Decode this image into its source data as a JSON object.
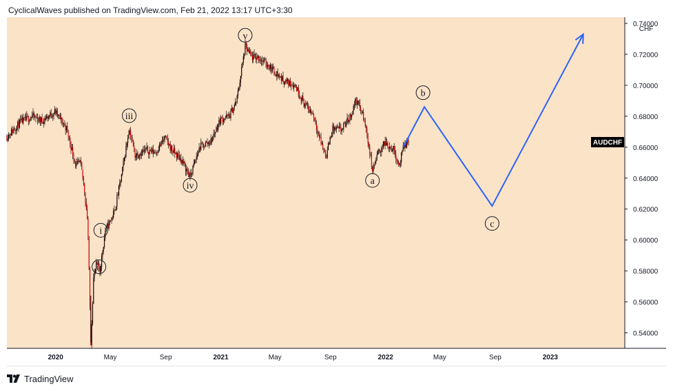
{
  "header": {
    "publisher_line": "CyclicalWaves published on TradingView.com, Feb 21, 2022 13:17 UTC+3:30"
  },
  "footer": {
    "brand": "TradingView",
    "logo_icon": "tradingview-logo-icon"
  },
  "colors": {
    "background": "#fbe3c8",
    "candle": "#d60000",
    "wick": "#1a0000",
    "projection": "#2962ff",
    "axis_text": "#131722",
    "label_bg": "#000000"
  },
  "chart_data": {
    "type": "line",
    "symbol": "AUDCHF",
    "currency_label": "CHF",
    "last_price_label": "AUDCHF",
    "y_axis": {
      "min": 0.53,
      "max": 0.744,
      "ticks": [
        "0.54000",
        "0.56000",
        "0.58000",
        "0.60000",
        "0.62000",
        "0.64000",
        "0.66000",
        "0.68000",
        "0.70000",
        "0.72000",
        "0.74000"
      ]
    },
    "x_axis": {
      "start": "2019-09-15",
      "end": "2023-06-15",
      "ticks": [
        {
          "label": "2020",
          "date": "2020-01-01",
          "bold": true
        },
        {
          "label": "May",
          "date": "2020-05-01"
        },
        {
          "label": "Sep",
          "date": "2020-09-01"
        },
        {
          "label": "2021",
          "date": "2021-01-01",
          "bold": true
        },
        {
          "label": "May",
          "date": "2021-05-01"
        },
        {
          "label": "Sep",
          "date": "2021-09-01"
        },
        {
          "label": "2022",
          "date": "2022-01-01",
          "bold": true
        },
        {
          "label": "May",
          "date": "2022-05-01"
        },
        {
          "label": "Sep",
          "date": "2022-09-01"
        },
        {
          "label": "2023",
          "date": "2023-01-01",
          "bold": true
        }
      ]
    },
    "price_path": [
      [
        "2019-09-15",
        0.667
      ],
      [
        "2019-10-15",
        0.676
      ],
      [
        "2019-11-10",
        0.68
      ],
      [
        "2019-12-01",
        0.677
      ],
      [
        "2019-12-31",
        0.683
      ],
      [
        "2020-01-25",
        0.672
      ],
      [
        "2020-02-15",
        0.648
      ],
      [
        "2020-02-25",
        0.65
      ],
      [
        "2020-03-05",
        0.632
      ],
      [
        "2020-03-12",
        0.612
      ],
      [
        "2020-03-19",
        0.534
      ],
      [
        "2020-03-25",
        0.575
      ],
      [
        "2020-04-01",
        0.585
      ],
      [
        "2020-04-08",
        0.58
      ],
      [
        "2020-04-20",
        0.606
      ],
      [
        "2020-05-10",
        0.618
      ],
      [
        "2020-05-25",
        0.64
      ],
      [
        "2020-06-08",
        0.665
      ],
      [
        "2020-06-12",
        0.672
      ],
      [
        "2020-06-25",
        0.655
      ],
      [
        "2020-07-20",
        0.658
      ],
      [
        "2020-08-10",
        0.657
      ],
      [
        "2020-08-30",
        0.666
      ],
      [
        "2020-09-15",
        0.658
      ],
      [
        "2020-10-05",
        0.652
      ],
      [
        "2020-10-25",
        0.641
      ],
      [
        "2020-11-15",
        0.66
      ],
      [
        "2020-12-10",
        0.664
      ],
      [
        "2020-12-31",
        0.678
      ],
      [
        "2021-01-20",
        0.68
      ],
      [
        "2021-02-05",
        0.69
      ],
      [
        "2021-02-24",
        0.725
      ],
      [
        "2021-03-10",
        0.718
      ],
      [
        "2021-03-25",
        0.718
      ],
      [
        "2021-04-20",
        0.712
      ],
      [
        "2021-05-20",
        0.703
      ],
      [
        "2021-06-15",
        0.7
      ],
      [
        "2021-07-05",
        0.688
      ],
      [
        "2021-07-25",
        0.681
      ],
      [
        "2021-08-10",
        0.664
      ],
      [
        "2021-08-22",
        0.654
      ],
      [
        "2021-09-05",
        0.672
      ],
      [
        "2021-09-25",
        0.671
      ],
      [
        "2021-10-15",
        0.68
      ],
      [
        "2021-10-28",
        0.691
      ],
      [
        "2021-11-10",
        0.682
      ],
      [
        "2021-11-20",
        0.67
      ],
      [
        "2021-12-03",
        0.645
      ],
      [
        "2021-12-15",
        0.656
      ],
      [
        "2021-12-31",
        0.663
      ],
      [
        "2022-01-20",
        0.658
      ],
      [
        "2022-01-31",
        0.648
      ],
      [
        "2022-02-10",
        0.66
      ],
      [
        "2022-02-21",
        0.664
      ]
    ],
    "projection": [
      [
        "2022-02-09",
        0.66
      ],
      [
        "2022-03-28",
        0.686
      ],
      [
        "2022-08-25",
        0.622
      ],
      [
        "2023-03-15",
        0.733
      ]
    ],
    "projection_arrow": true,
    "annotations": [
      {
        "label": "v",
        "date": "2021-02-24",
        "value": 0.7323
      },
      {
        "label": "iii",
        "date": "2020-06-12",
        "value": 0.6804
      },
      {
        "label": "iv",
        "date": "2020-10-25",
        "value": 0.6354
      },
      {
        "label": "i",
        "date": "2020-04-10",
        "value": 0.6063
      },
      {
        "label": "ii",
        "date": "2020-04-06",
        "value": 0.5827
      },
      {
        "label": "a",
        "date": "2021-12-03",
        "value": 0.6385
      },
      {
        "label": "b",
        "date": "2022-03-25",
        "value": 0.6952
      },
      {
        "label": "c",
        "date": "2022-08-25",
        "value": 0.6107
      }
    ]
  }
}
